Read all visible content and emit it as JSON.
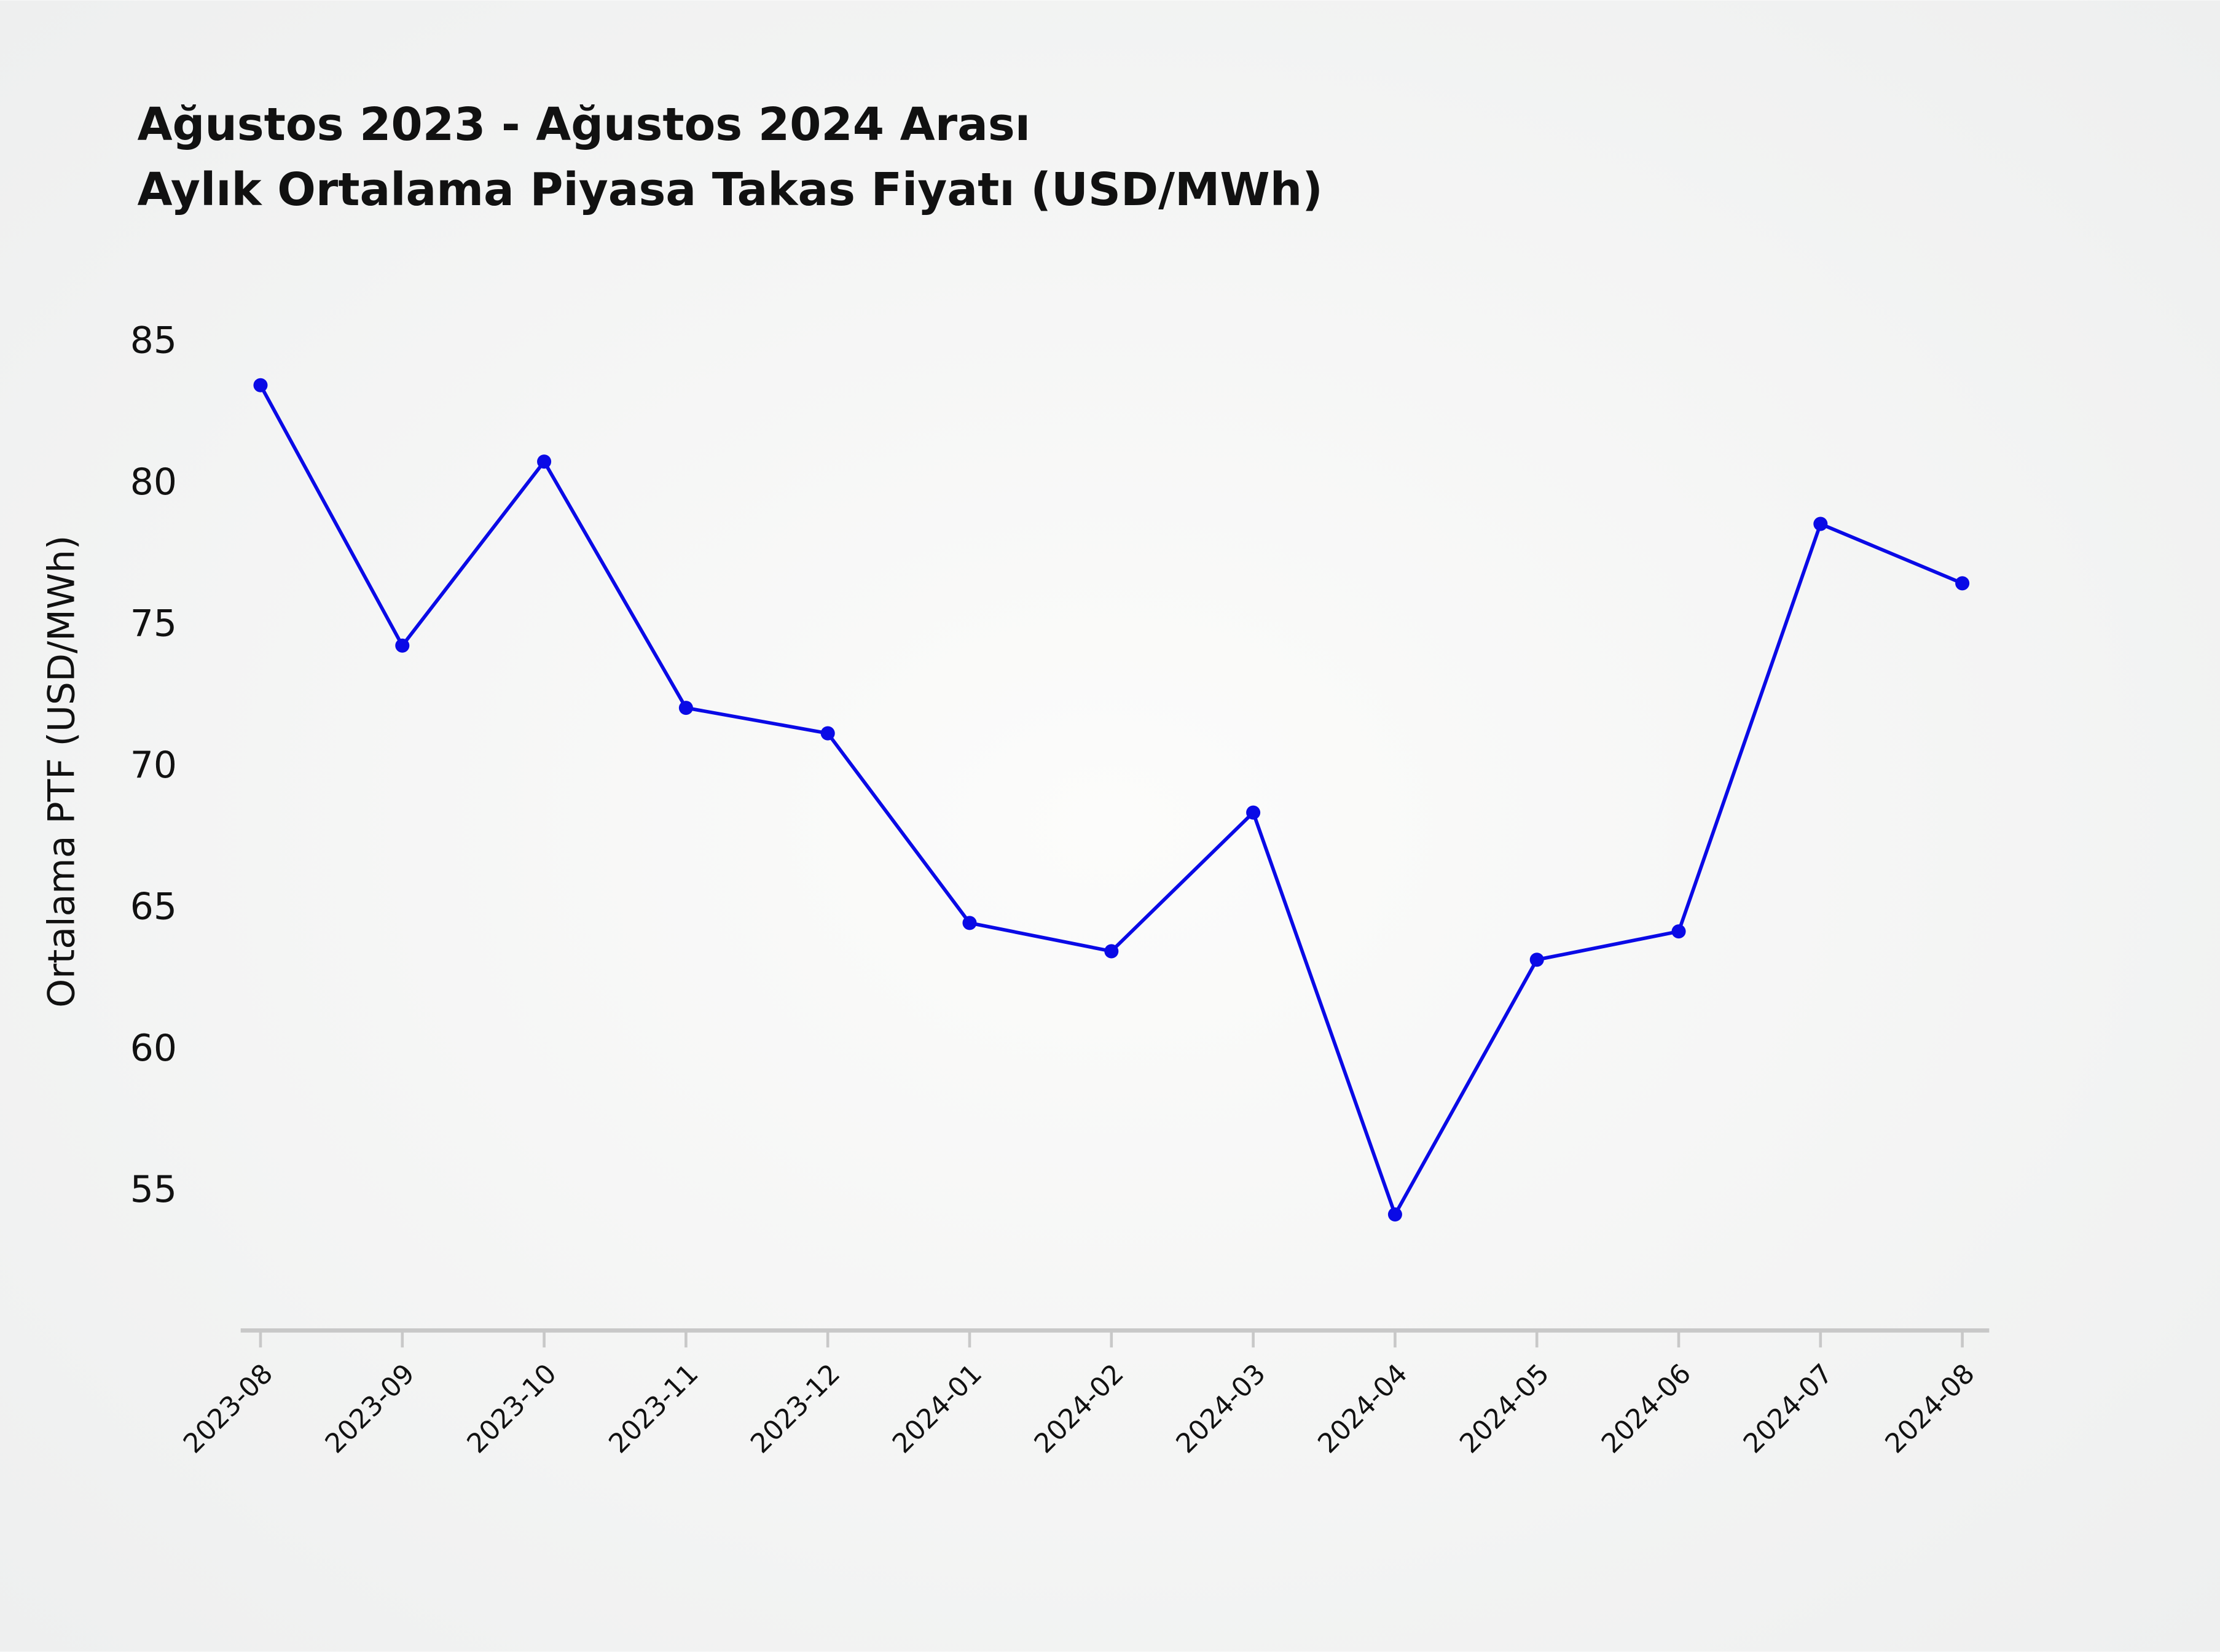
{
  "chart_data": {
    "type": "line",
    "title": "Ağustos 2023 - Ağustos 2024 Arası",
    "subtitle": "Aylık Ortalama Piyasa Takas Fiyatı (USD/MWh)",
    "y_label": "Ortalama PTF (USD/MWh)",
    "categories": [
      "2023-08",
      "2023-09",
      "2023-10",
      "2023-11",
      "2023-12",
      "2024-01",
      "2024-02",
      "2024-03",
      "2024-04",
      "2024-05",
      "2024-06",
      "2024-07",
      "2024-08"
    ],
    "series": [
      {
        "color": "#0a0ae6",
        "values": [
          83.5,
          74.3,
          80.8,
          72.1,
          71.2,
          64.5,
          63.5,
          68.4,
          54.2,
          63.2,
          64.2,
          78.6,
          76.5
        ]
      }
    ],
    "ylim": [
      50.1,
      86.5
    ],
    "yticks": [
      55,
      60,
      65,
      70,
      75,
      80,
      85
    ],
    "grid": false
  }
}
